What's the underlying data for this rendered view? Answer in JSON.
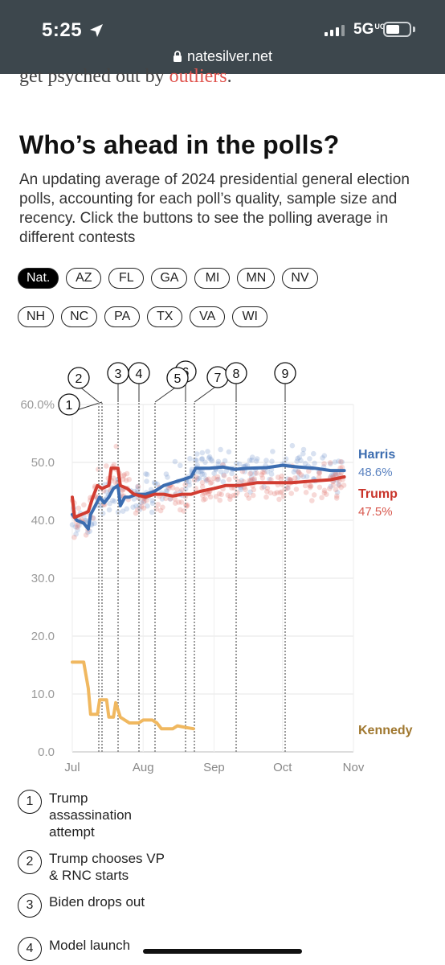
{
  "status": {
    "time": "5:25",
    "network": "5G",
    "network_suffix": "UC"
  },
  "browser": {
    "url": "natesilver.net"
  },
  "article": {
    "prev_line_text": "get psyched out by ",
    "prev_line_link": "outliers",
    "prev_line_end": ".",
    "title": "Who’s ahead in the polls?",
    "description": "An updating average of 2024 presidential general election polls, accounting for each poll’s quality, sample size and recency. Click the buttons to see the polling average in different contests"
  },
  "tabs": [
    "Nat.",
    "AZ",
    "FL",
    "GA",
    "MI",
    "MN",
    "NV",
    "NH",
    "NC",
    "PA",
    "TX",
    "VA",
    "WI"
  ],
  "active_tab": "Nat.",
  "chart_data": {
    "type": "line",
    "x_ticks": [
      "Jul",
      "Aug",
      "Sep",
      "Oct",
      "Nov"
    ],
    "y_ticks": [
      "60.0%",
      "50.0",
      "40.0",
      "30.0",
      "20.0",
      "10.0",
      "0.0"
    ],
    "ylim": [
      0,
      60
    ],
    "grid": true,
    "events": [
      1,
      2,
      3,
      4,
      5,
      6,
      7,
      8,
      9
    ],
    "series": [
      {
        "name": "Harris",
        "value_label": "48.6%",
        "color": "#3c6db0",
        "points": [
          [
            "2024-07-01",
            41
          ],
          [
            "2024-07-03",
            40
          ],
          [
            "2024-07-06",
            39.5
          ],
          [
            "2024-07-08",
            38.5
          ],
          [
            "2024-07-09",
            41
          ],
          [
            "2024-07-11",
            42.5
          ],
          [
            "2024-07-13",
            44
          ],
          [
            "2024-07-15",
            43
          ],
          [
            "2024-07-17",
            44
          ],
          [
            "2024-07-19",
            45.5
          ],
          [
            "2024-07-21",
            46
          ],
          [
            "2024-07-22",
            42.5
          ],
          [
            "2024-07-24",
            44
          ],
          [
            "2024-07-26",
            44
          ],
          [
            "2024-07-29",
            44.5
          ],
          [
            "2024-08-02",
            44.5
          ],
          [
            "2024-08-06",
            45
          ],
          [
            "2024-08-10",
            46
          ],
          [
            "2024-08-14",
            46.5
          ],
          [
            "2024-08-18",
            47
          ],
          [
            "2024-08-22",
            47.5
          ],
          [
            "2024-08-24",
            49
          ],
          [
            "2024-08-30",
            49
          ],
          [
            "2024-09-05",
            49.2
          ],
          [
            "2024-09-10",
            48.8
          ],
          [
            "2024-09-16",
            49
          ],
          [
            "2024-09-24",
            49.1
          ],
          [
            "2024-10-01",
            49.5
          ],
          [
            "2024-10-08",
            49.2
          ],
          [
            "2024-10-15",
            49
          ],
          [
            "2024-10-22",
            48.6
          ],
          [
            "2024-10-28",
            48.6
          ]
        ]
      },
      {
        "name": "Trump",
        "value_label": "47.5%",
        "color": "#d13c31",
        "points": [
          [
            "2024-07-01",
            44
          ],
          [
            "2024-07-02",
            40.5
          ],
          [
            "2024-07-05",
            41
          ],
          [
            "2024-07-08",
            41.5
          ],
          [
            "2024-07-10",
            44
          ],
          [
            "2024-07-12",
            46
          ],
          [
            "2024-07-14",
            45.5
          ],
          [
            "2024-07-17",
            46
          ],
          [
            "2024-07-18",
            49
          ],
          [
            "2024-07-21",
            49
          ],
          [
            "2024-07-22",
            46
          ],
          [
            "2024-07-25",
            45.5
          ],
          [
            "2024-07-28",
            44.5
          ],
          [
            "2024-08-02",
            44
          ],
          [
            "2024-08-06",
            44.5
          ],
          [
            "2024-08-10",
            44.5
          ],
          [
            "2024-08-14",
            44.2
          ],
          [
            "2024-08-18",
            44.5
          ],
          [
            "2024-08-22",
            44.5
          ],
          [
            "2024-08-26",
            45
          ],
          [
            "2024-09-01",
            45.5
          ],
          [
            "2024-09-06",
            46
          ],
          [
            "2024-09-12",
            46
          ],
          [
            "2024-09-20",
            46.5
          ],
          [
            "2024-09-28",
            46.5
          ],
          [
            "2024-10-05",
            46.5
          ],
          [
            "2024-10-15",
            46.8
          ],
          [
            "2024-10-22",
            47
          ],
          [
            "2024-10-28",
            47.5
          ]
        ]
      },
      {
        "name": "Kennedy",
        "color": "#f0b860",
        "points": [
          [
            "2024-07-01",
            15.5
          ],
          [
            "2024-07-06",
            15.5
          ],
          [
            "2024-07-08",
            11
          ],
          [
            "2024-07-09",
            6.5
          ],
          [
            "2024-07-12",
            6.5
          ],
          [
            "2024-07-13",
            9
          ],
          [
            "2024-07-16",
            9
          ],
          [
            "2024-07-17",
            6
          ],
          [
            "2024-07-19",
            6
          ],
          [
            "2024-07-20",
            8.5
          ],
          [
            "2024-07-22",
            6
          ],
          [
            "2024-07-24",
            5.5
          ],
          [
            "2024-07-26",
            5
          ],
          [
            "2024-07-30",
            5
          ],
          [
            "2024-08-01",
            5.5
          ],
          [
            "2024-08-05",
            5.5
          ],
          [
            "2024-08-07",
            5
          ],
          [
            "2024-08-09",
            4
          ],
          [
            "2024-08-14",
            4
          ],
          [
            "2024-08-16",
            4.5
          ],
          [
            "2024-08-20",
            4.2
          ],
          [
            "2024-08-23",
            4
          ]
        ]
      }
    ]
  },
  "legend": [
    {
      "num": "1",
      "text": "Trump assassination attempt"
    },
    {
      "num": "2",
      "text": "Trump chooses VP & RNC starts"
    },
    {
      "num": "3",
      "text": "Biden drops out"
    },
    {
      "num": "4",
      "text": "Model launch"
    }
  ]
}
